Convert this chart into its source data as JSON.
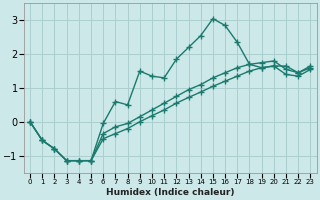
{
  "xlabel": "Humidex (Indice chaleur)",
  "ylabel": "",
  "bg_color": "#cce8e8",
  "line_color": "#1a7a6e",
  "grid_color": "#aacece",
  "xlim": [
    -0.5,
    23.5
  ],
  "ylim": [
    -1.5,
    3.5
  ],
  "xticks": [
    0,
    1,
    2,
    3,
    4,
    5,
    6,
    7,
    8,
    9,
    10,
    11,
    12,
    13,
    14,
    15,
    16,
    17,
    18,
    19,
    20,
    21,
    22,
    23
  ],
  "yticks": [
    -1,
    0,
    1,
    2,
    3
  ],
  "line1_x": [
    0,
    1,
    2,
    3,
    4,
    5,
    6,
    7,
    8,
    9,
    10,
    11,
    12,
    13,
    14,
    15,
    16,
    17,
    18,
    19,
    20,
    21,
    22,
    23
  ],
  "line1_y": [
    0.0,
    -0.55,
    -0.8,
    -1.15,
    -1.15,
    -1.15,
    -0.05,
    0.6,
    0.5,
    1.5,
    1.35,
    1.3,
    1.85,
    2.2,
    2.55,
    3.05,
    2.85,
    2.35,
    1.7,
    1.6,
    1.65,
    1.65,
    1.45,
    1.65
  ],
  "line2_x": [
    0,
    1,
    2,
    3,
    4,
    5,
    6,
    7,
    8,
    9,
    10,
    11,
    12,
    13,
    14,
    15,
    16,
    17,
    18,
    19,
    20,
    21,
    22,
    23
  ],
  "line2_y": [
    0.0,
    -0.55,
    -0.8,
    -1.15,
    -1.15,
    -1.15,
    -0.35,
    -0.15,
    -0.05,
    0.15,
    0.35,
    0.55,
    0.75,
    0.95,
    1.1,
    1.3,
    1.45,
    1.6,
    1.7,
    1.75,
    1.8,
    1.55,
    1.45,
    1.6
  ],
  "line3_x": [
    0,
    1,
    2,
    3,
    4,
    5,
    6,
    7,
    8,
    9,
    10,
    11,
    12,
    13,
    14,
    15,
    16,
    17,
    18,
    19,
    20,
    21,
    22,
    23
  ],
  "line3_y": [
    0.0,
    -0.55,
    -0.8,
    -1.15,
    -1.15,
    -1.15,
    -0.5,
    -0.35,
    -0.2,
    0.0,
    0.18,
    0.35,
    0.55,
    0.72,
    0.88,
    1.05,
    1.2,
    1.35,
    1.5,
    1.6,
    1.65,
    1.4,
    1.35,
    1.55
  ],
  "marker": "+",
  "markersize": 4,
  "linewidth": 1.0
}
